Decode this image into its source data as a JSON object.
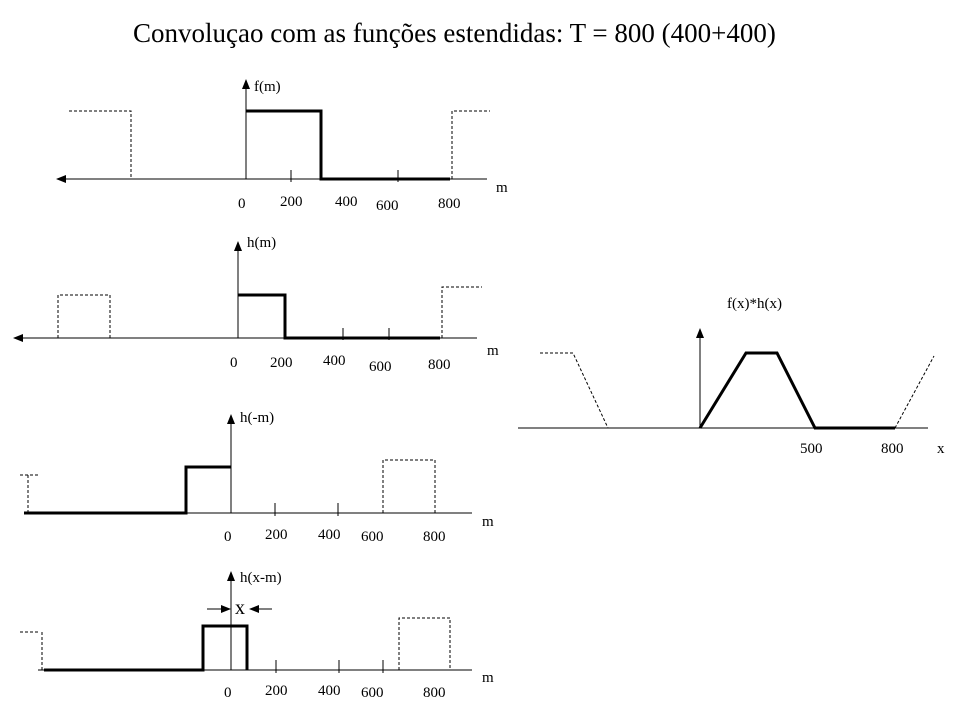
{
  "title": "Convoluçao com as funções estendidas: T = 800 (400+400)",
  "ticks": [
    "0",
    "200",
    "400",
    "600",
    "800"
  ],
  "panels": {
    "fm": {
      "func_label": "f(m)",
      "axis_label": "m"
    },
    "hm": {
      "func_label": "h(m)",
      "axis_label": "m"
    },
    "hneg": {
      "func_label": "h(-m)",
      "axis_label": "m"
    },
    "hxm": {
      "func_label": "h(x-m)",
      "axis_label": "m",
      "shift_label": "x"
    }
  },
  "result": {
    "func_label": "f(x)*h(x)",
    "axis_label": "x",
    "ticks": [
      "500",
      "800"
    ]
  }
}
